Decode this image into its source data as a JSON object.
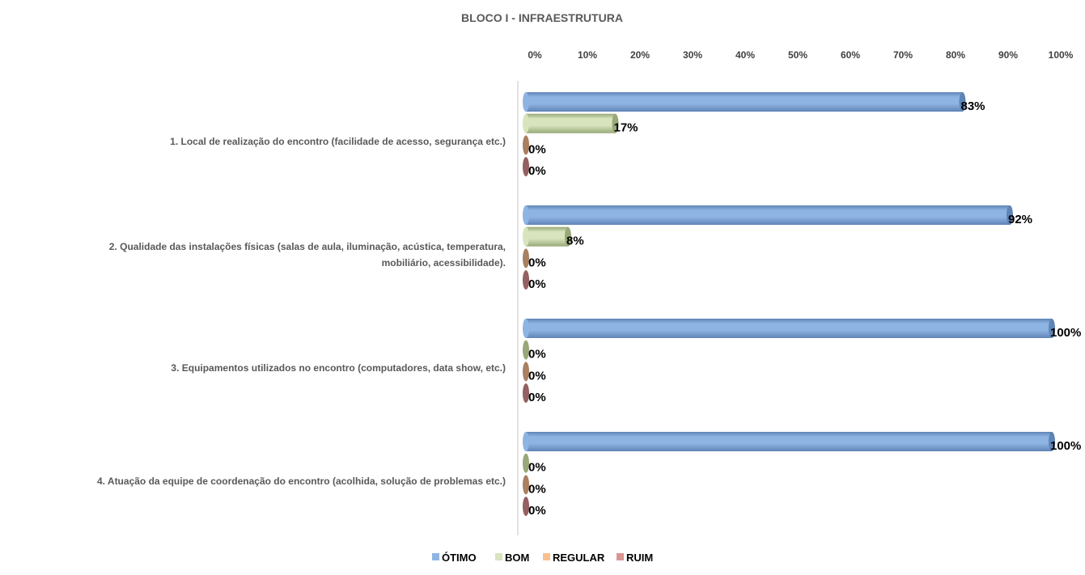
{
  "chart_data": {
    "type": "bar",
    "orientation": "horizontal",
    "title": "BLOCO I - INFRAESTRUTURA",
    "categories": [
      [
        "1. Local de realização do encontro (facilidade de acesso, segurança etc.)"
      ],
      [
        "2. Qualidade das instalações físicas (salas de aula, iluminação, acústica, temperatura,",
        "mobiliário, acessibilidade)."
      ],
      [
        "3. Equipamentos utilizados no encontro (computadores, data show, etc.)"
      ],
      [
        "4. Atuação da equipe de coordenação do encontro (acolhida, solução de problemas etc.)"
      ]
    ],
    "series": [
      {
        "name": "ÓTIMO",
        "color": "#8EB4E3",
        "dark": "#5F84B6",
        "values": [
          83,
          92,
          100,
          100
        ]
      },
      {
        "name": "BOM",
        "color": "#D7E4BD",
        "dark": "#98A878",
        "values": [
          17,
          8,
          0,
          0
        ]
      },
      {
        "name": "REGULAR",
        "color": "#FAC090",
        "dark": "#A98060",
        "values": [
          0,
          0,
          0,
          0
        ]
      },
      {
        "name": "RUIM",
        "color": "#D99694",
        "dark": "#946060",
        "values": [
          0,
          0,
          0,
          0
        ]
      }
    ],
    "xticks": [
      "0%",
      "10%",
      "20%",
      "30%",
      "40%",
      "50%",
      "60%",
      "70%",
      "80%",
      "90%",
      "100%"
    ],
    "xlim": [
      0,
      100
    ],
    "legend_position": "bottom",
    "grid": false
  }
}
